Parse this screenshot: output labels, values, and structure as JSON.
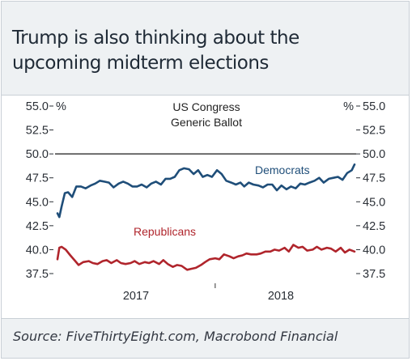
{
  "title": "Trump is also thinking about the upcoming midterm elections",
  "source": "Source: FiveThirtyEight.com, Macrobond Financial",
  "chart_data": {
    "type": "line",
    "annotation_lines": [
      "US Congress",
      "Generic Ballot"
    ],
    "left_unit": "%",
    "right_unit": "%",
    "ylim": [
      37.5,
      55.0
    ],
    "y_ticks": [
      "55.0",
      "52.5",
      "50.0",
      "47.5",
      "45.0",
      "42.5",
      "40.0",
      "37.5"
    ],
    "x_ticks": [
      "2017",
      "2018"
    ],
    "reference_line": 50.0,
    "grid": false,
    "xlim": [
      "2017-01-23",
      "2018-10-31"
    ],
    "series": [
      {
        "name": "Democrats",
        "color": "#1f4e79",
        "x": [
          "2017-01-23",
          "2017-01-27",
          "2017-02-01",
          "2017-02-08",
          "2017-02-15",
          "2017-02-24",
          "2017-03-05",
          "2017-03-15",
          "2017-03-25",
          "2017-04-05",
          "2017-04-15",
          "2017-04-25",
          "2017-05-05",
          "2017-05-15",
          "2017-05-25",
          "2017-06-05",
          "2017-06-15",
          "2017-06-25",
          "2017-07-05",
          "2017-07-15",
          "2017-07-25",
          "2017-08-05",
          "2017-08-15",
          "2017-08-25",
          "2017-09-05",
          "2017-09-15",
          "2017-09-25",
          "2017-10-05",
          "2017-10-15",
          "2017-10-25",
          "2017-11-05",
          "2017-11-15",
          "2017-11-25",
          "2017-12-05",
          "2017-12-15",
          "2017-12-25",
          "2018-01-05",
          "2018-01-15",
          "2018-01-25",
          "2018-02-05",
          "2018-02-15",
          "2018-02-25",
          "2018-03-05",
          "2018-03-15",
          "2018-03-25",
          "2018-04-05",
          "2018-04-15",
          "2018-04-25",
          "2018-05-05",
          "2018-05-15",
          "2018-05-25",
          "2018-06-05",
          "2018-06-15",
          "2018-06-25",
          "2018-07-05",
          "2018-07-15",
          "2018-07-25",
          "2018-08-05",
          "2018-08-15",
          "2018-08-25",
          "2018-09-05",
          "2018-09-15",
          "2018-09-25",
          "2018-10-05",
          "2018-10-15",
          "2018-10-25",
          "2018-10-31"
        ],
        "values": [
          43.8,
          43.4,
          44.5,
          45.9,
          46.0,
          45.5,
          46.6,
          46.6,
          46.4,
          46.7,
          46.9,
          47.2,
          47.1,
          47.0,
          46.5,
          46.9,
          47.1,
          46.9,
          46.6,
          46.6,
          46.8,
          46.5,
          46.9,
          47.1,
          46.8,
          47.4,
          47.4,
          47.6,
          48.3,
          48.5,
          48.4,
          47.9,
          48.3,
          47.6,
          47.8,
          47.6,
          48.3,
          47.9,
          47.2,
          47.0,
          46.8,
          47.0,
          46.6,
          47.0,
          46.8,
          46.7,
          46.5,
          46.8,
          46.8,
          46.2,
          46.7,
          46.3,
          46.6,
          46.4,
          46.9,
          46.8,
          47.0,
          47.2,
          47.5,
          47.0,
          47.4,
          47.5,
          47.6,
          47.3,
          48.0,
          48.3,
          48.9
        ]
      },
      {
        "name": "Republicans",
        "color": "#b0252c",
        "x": [
          "2017-01-23",
          "2017-01-27",
          "2017-02-01",
          "2017-02-10",
          "2017-02-20",
          "2017-03-01",
          "2017-03-10",
          "2017-03-20",
          "2017-04-01",
          "2017-04-10",
          "2017-04-20",
          "2017-05-01",
          "2017-05-10",
          "2017-05-20",
          "2017-06-01",
          "2017-06-10",
          "2017-06-20",
          "2017-07-01",
          "2017-07-10",
          "2017-07-20",
          "2017-08-01",
          "2017-08-10",
          "2017-08-20",
          "2017-09-01",
          "2017-09-10",
          "2017-09-20",
          "2017-10-01",
          "2017-10-10",
          "2017-10-20",
          "2017-11-01",
          "2017-11-10",
          "2017-11-20",
          "2017-12-01",
          "2017-12-10",
          "2017-12-20",
          "2018-01-01",
          "2018-01-10",
          "2018-01-20",
          "2018-02-01",
          "2018-02-10",
          "2018-02-20",
          "2018-03-01",
          "2018-03-10",
          "2018-03-20",
          "2018-04-01",
          "2018-04-10",
          "2018-04-20",
          "2018-05-01",
          "2018-05-10",
          "2018-05-20",
          "2018-06-01",
          "2018-06-10",
          "2018-06-20",
          "2018-07-01",
          "2018-07-10",
          "2018-07-20",
          "2018-08-01",
          "2018-08-10",
          "2018-08-20",
          "2018-09-01",
          "2018-09-10",
          "2018-09-20",
          "2018-10-01",
          "2018-10-10",
          "2018-10-20",
          "2018-10-31"
        ],
        "values": [
          39.0,
          40.2,
          40.3,
          40.0,
          39.4,
          38.9,
          38.4,
          38.7,
          38.8,
          38.6,
          38.5,
          38.8,
          38.9,
          38.6,
          38.9,
          38.6,
          38.5,
          38.6,
          38.8,
          38.5,
          38.7,
          38.6,
          38.8,
          38.5,
          38.9,
          38.5,
          38.2,
          38.4,
          38.3,
          37.9,
          38.0,
          38.1,
          38.4,
          38.7,
          39.0,
          39.1,
          39.0,
          39.5,
          39.3,
          39.1,
          39.3,
          39.4,
          39.6,
          39.5,
          39.5,
          39.6,
          39.8,
          39.8,
          40.0,
          39.9,
          40.2,
          39.8,
          40.5,
          40.2,
          40.3,
          39.9,
          40.0,
          40.3,
          40.0,
          40.2,
          40.1,
          39.8,
          40.2,
          39.7,
          40.0,
          39.8
        ]
      }
    ]
  }
}
